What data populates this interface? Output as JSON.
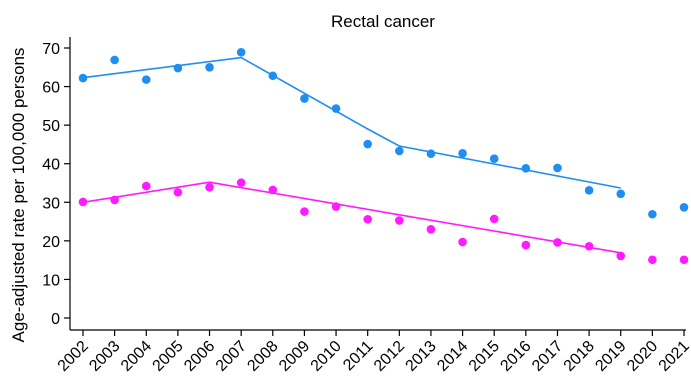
{
  "chart_data": {
    "type": "scatter",
    "title": "Rectal cancer",
    "xlabel": "",
    "ylabel": "Age-adjusted rate per 100,000 persons",
    "x": [
      2002,
      2003,
      2004,
      2005,
      2006,
      2007,
      2008,
      2009,
      2010,
      2011,
      2012,
      2013,
      2014,
      2015,
      2016,
      2017,
      2018,
      2019,
      2020,
      2021
    ],
    "ylim": [
      0,
      70
    ],
    "yticks": [
      0,
      10,
      20,
      30,
      40,
      50,
      60,
      70
    ],
    "grid": false,
    "series": [
      {
        "color": "#1f8ef1",
        "points": [
          62.2,
          66.9,
          61.8,
          64.8,
          65.0,
          68.9,
          62.8,
          56.9,
          54.3,
          45.1,
          43.3,
          42.6,
          42.7,
          41.3,
          38.8,
          38.9,
          33.1,
          32.2,
          26.9,
          28.7
        ],
        "trend": [
          [
            2002,
            62.3
          ],
          [
            2007,
            67.5
          ],
          [
            2011,
            49.0
          ],
          [
            2012,
            44.6
          ],
          [
            2019,
            33.7
          ]
        ]
      },
      {
        "color": "#ff1aff",
        "points": [
          30.1,
          30.6,
          34.2,
          32.6,
          33.9,
          35.1,
          33.2,
          27.6,
          28.9,
          25.6,
          25.3,
          23.0,
          19.7,
          25.7,
          18.9,
          19.6,
          18.6,
          16.1,
          15.1,
          15.1
        ],
        "trend": [
          [
            2002,
            30.0
          ],
          [
            2006,
            35.2
          ],
          [
            2019,
            16.9
          ]
        ]
      }
    ]
  }
}
